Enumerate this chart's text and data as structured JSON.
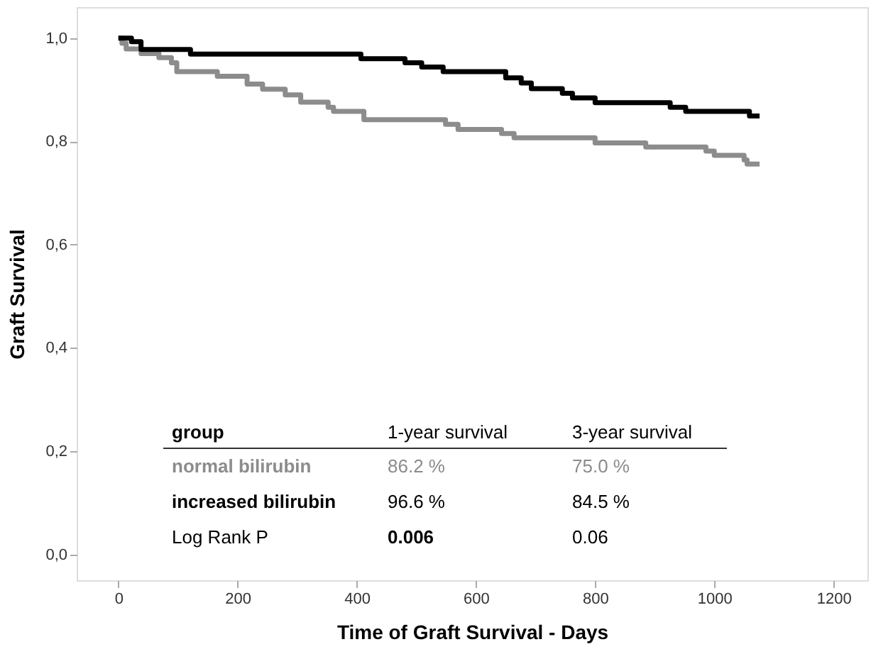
{
  "chart_data": {
    "type": "step",
    "xlabel": "Time of Graft Survival - Days",
    "ylabel": "Graft Survival",
    "xlim": [
      -70,
      1257
    ],
    "ylim": [
      -0.05,
      1.06
    ],
    "xticks": [
      0,
      200,
      400,
      600,
      800,
      1000,
      1200
    ],
    "yticks": [
      {
        "value": 0,
        "label": "0,0"
      },
      {
        "value": 0.2,
        "label": "0,2"
      },
      {
        "value": 0.4,
        "label": "0,4"
      },
      {
        "value": 0.6,
        "label": "0,6"
      },
      {
        "value": 0.8,
        "label": "0,8"
      },
      {
        "value": 1,
        "label": "1,0"
      }
    ],
    "grid": false,
    "legend": false,
    "marker": "none",
    "line_style": "solid",
    "series": [
      {
        "name": "normal bilirubin",
        "color": "#8c8c8c",
        "x": [
          0,
          6,
          13,
          38,
          68,
          89,
          98,
          166,
          216,
          242,
          280,
          306,
          352,
          361,
          412,
          549,
          570,
          643,
          664,
          800,
          885,
          986,
          1000,
          1050,
          1055,
          1076
        ],
        "values": [
          1.0,
          0.99,
          0.979,
          0.97,
          0.962,
          0.952,
          0.935,
          0.926,
          0.911,
          0.901,
          0.89,
          0.876,
          0.866,
          0.858,
          0.842,
          0.833,
          0.823,
          0.815,
          0.807,
          0.797,
          0.789,
          0.781,
          0.773,
          0.764,
          0.756,
          0.756
        ]
      },
      {
        "name": "increased bilirubin",
        "color": "#000000",
        "x": [
          0,
          22,
          38,
          121,
          407,
          481,
          509,
          545,
          650,
          676,
          693,
          745,
          762,
          800,
          926,
          952,
          1059,
          1076
        ],
        "values": [
          1.0,
          0.993,
          0.978,
          0.969,
          0.96,
          0.952,
          0.944,
          0.935,
          0.923,
          0.913,
          0.902,
          0.893,
          0.884,
          0.875,
          0.866,
          0.858,
          0.849,
          0.849
        ]
      }
    ],
    "annotations": [
      "group",
      "1-year survival",
      "3-year survival",
      "86.2 %",
      "75.0 %",
      "96.6 %",
      "84.5 %",
      "Log Rank P",
      "0.006",
      "0.06"
    ]
  }
}
